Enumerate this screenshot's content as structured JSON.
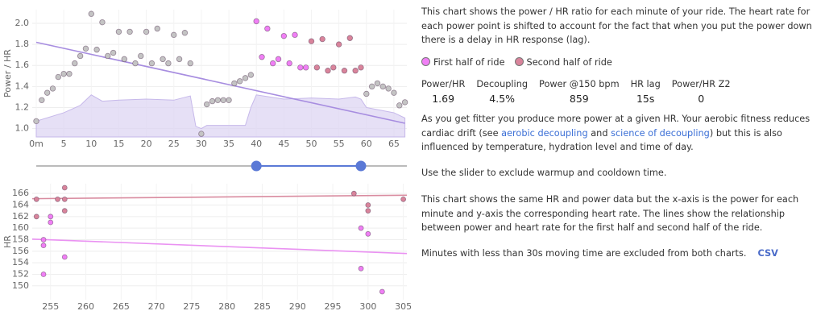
{
  "chart_data": [
    {
      "type": "scatter",
      "y_label": "Power / HR",
      "xlim": [
        -0.73,
        67.35
      ],
      "ylim": [
        0.92,
        2.13
      ],
      "xticks": [
        {
          "value": 0,
          "label": "0m"
        },
        5,
        10,
        15,
        20,
        25,
        30,
        35,
        40,
        45,
        50,
        55,
        60,
        65
      ],
      "yticks": [
        {
          "value": 1,
          "label": "1.0"
        },
        1.2,
        1.4,
        1.6,
        1.8,
        {
          "value": 2,
          "label": "2.0"
        }
      ],
      "grid": true,
      "area": {
        "color": "#dcd3f2",
        "x": [
          0,
          5,
          8,
          9,
          10,
          12,
          15,
          20,
          25,
          28,
          29,
          30,
          31,
          35,
          38,
          39,
          40,
          45,
          50,
          55,
          58,
          59,
          60,
          63,
          65,
          67
        ],
        "values": [
          1.07,
          1.15,
          1.22,
          1.27,
          1.32,
          1.26,
          1.27,
          1.28,
          1.27,
          1.31,
          1.02,
          1.0,
          1.03,
          1.03,
          1.03,
          1.2,
          1.32,
          1.28,
          1.29,
          1.28,
          1.3,
          1.28,
          1.2,
          1.17,
          1.15,
          1.1
        ]
      },
      "series": [
        {
          "color": "#c4c4c4",
          "x": [
            0,
            1,
            2,
            3,
            4,
            5,
            6,
            7,
            8,
            9,
            10,
            11,
            12,
            13,
            14,
            15,
            16,
            17,
            18,
            19,
            20,
            21,
            22,
            23,
            24,
            25,
            26,
            27,
            28,
            30,
            31,
            32,
            33,
            34,
            35,
            36,
            37,
            38,
            39,
            60,
            61,
            62,
            63,
            64,
            65,
            66,
            67
          ],
          "values": [
            1.07,
            1.27,
            1.34,
            1.38,
            1.49,
            1.52,
            1.52,
            1.62,
            1.69,
            1.76,
            2.09,
            1.75,
            2.01,
            1.69,
            1.72,
            1.92,
            1.66,
            1.92,
            1.62,
            1.69,
            1.92,
            1.62,
            1.95,
            1.66,
            1.62,
            1.89,
            1.66,
            1.91,
            1.62,
            0.95,
            1.23,
            1.26,
            1.27,
            1.27,
            1.27,
            1.43,
            1.45,
            1.48,
            1.51,
            1.33,
            1.4,
            1.43,
            1.4,
            1.38,
            1.34,
            1.22,
            1.25
          ]
        },
        {
          "color": "#f07ff5",
          "x": [
            40,
            41,
            42,
            43,
            44,
            45,
            46,
            47,
            48,
            49
          ],
          "values": [
            2.02,
            1.68,
            1.95,
            1.62,
            1.66,
            1.88,
            1.62,
            1.89,
            1.58,
            1.58
          ]
        },
        {
          "color": "#d9849b",
          "x": [
            50,
            51,
            52,
            53,
            54,
            55,
            56,
            57,
            58,
            59
          ],
          "values": [
            1.83,
            1.58,
            1.85,
            1.55,
            1.58,
            1.8,
            1.55,
            1.86,
            1.55,
            1.58
          ]
        }
      ],
      "trend": {
        "color": "#a78de0",
        "x": [
          0,
          67
        ],
        "values": [
          1.82,
          1.05
        ]
      }
    },
    {
      "type": "scatter",
      "y_label": "HR",
      "xlim": [
        252.4,
        305.5
      ],
      "ylim": [
        147.6,
        167.7
      ],
      "xticks": [
        255,
        260,
        265,
        270,
        275,
        280,
        285,
        290,
        295,
        300,
        305
      ],
      "yticks": [
        150,
        152,
        154,
        156,
        158,
        160,
        162,
        164,
        166
      ],
      "grid": true,
      "series": [
        {
          "name": "First half of ride",
          "color": "#f07ff5",
          "x": [
            255,
            255,
            254,
            254,
            254,
            257,
            299,
            300,
            299,
            302
          ],
          "values": [
            162,
            161,
            158,
            157,
            152,
            155,
            160,
            159,
            153,
            149
          ],
          "fit": {
            "color": "#ea92f2",
            "x": [
              252.4,
              305.5
            ],
            "values": [
              158.1,
              155.6
            ]
          }
        },
        {
          "name": "Second half of ride",
          "color": "#d9849b",
          "x": [
            253,
            253,
            256,
            257,
            257,
            257,
            298,
            300,
            300,
            305
          ],
          "values": [
            165,
            162,
            165,
            167,
            165,
            163,
            166,
            164,
            163,
            165
          ],
          "fit": {
            "color": "#d98ca0",
            "x": [
              252.4,
              305.5
            ],
            "values": [
              165.1,
              165.7
            ]
          }
        }
      ]
    }
  ],
  "slider": {
    "values": [
      40,
      59
    ]
  },
  "text": {
    "intro": "This chart shows the power / HR ratio for each minute of your ride. The heart rate for each power point is shifted to account for the fact that when you put the power down there is a delay in HR response (lag).",
    "stats": [
      {
        "label": "Power/HR",
        "value": "1.69"
      },
      {
        "label": "Decoupling",
        "value": "4.5%"
      },
      {
        "label": "Power @150 bpm",
        "value": "859"
      },
      {
        "label": "HR lag",
        "value": "15s"
      },
      {
        "label": "Power/HR Z2",
        "value": "0"
      }
    ],
    "fitness": [
      "As you get fitter you produce more power at a given HR. Your aerobic fitness reduces cardiac drift (see ",
      "aerobic decoupling",
      " and ",
      "science of decoupling",
      ") but this is also influenced by temperature, hydration level and time of day."
    ],
    "slider_note": "Use the slider to exclude warmup and cooldown time.",
    "second_chart": "This chart shows the same HR and power data but the x-axis is the power for each minute and y-axis the corresponding heart rate. The lines show the relationship between power and heart rate for the first half and second half of the ride.",
    "footer": "Minutes with less than 30s moving time are excluded from both charts.",
    "csv": "CSV"
  }
}
